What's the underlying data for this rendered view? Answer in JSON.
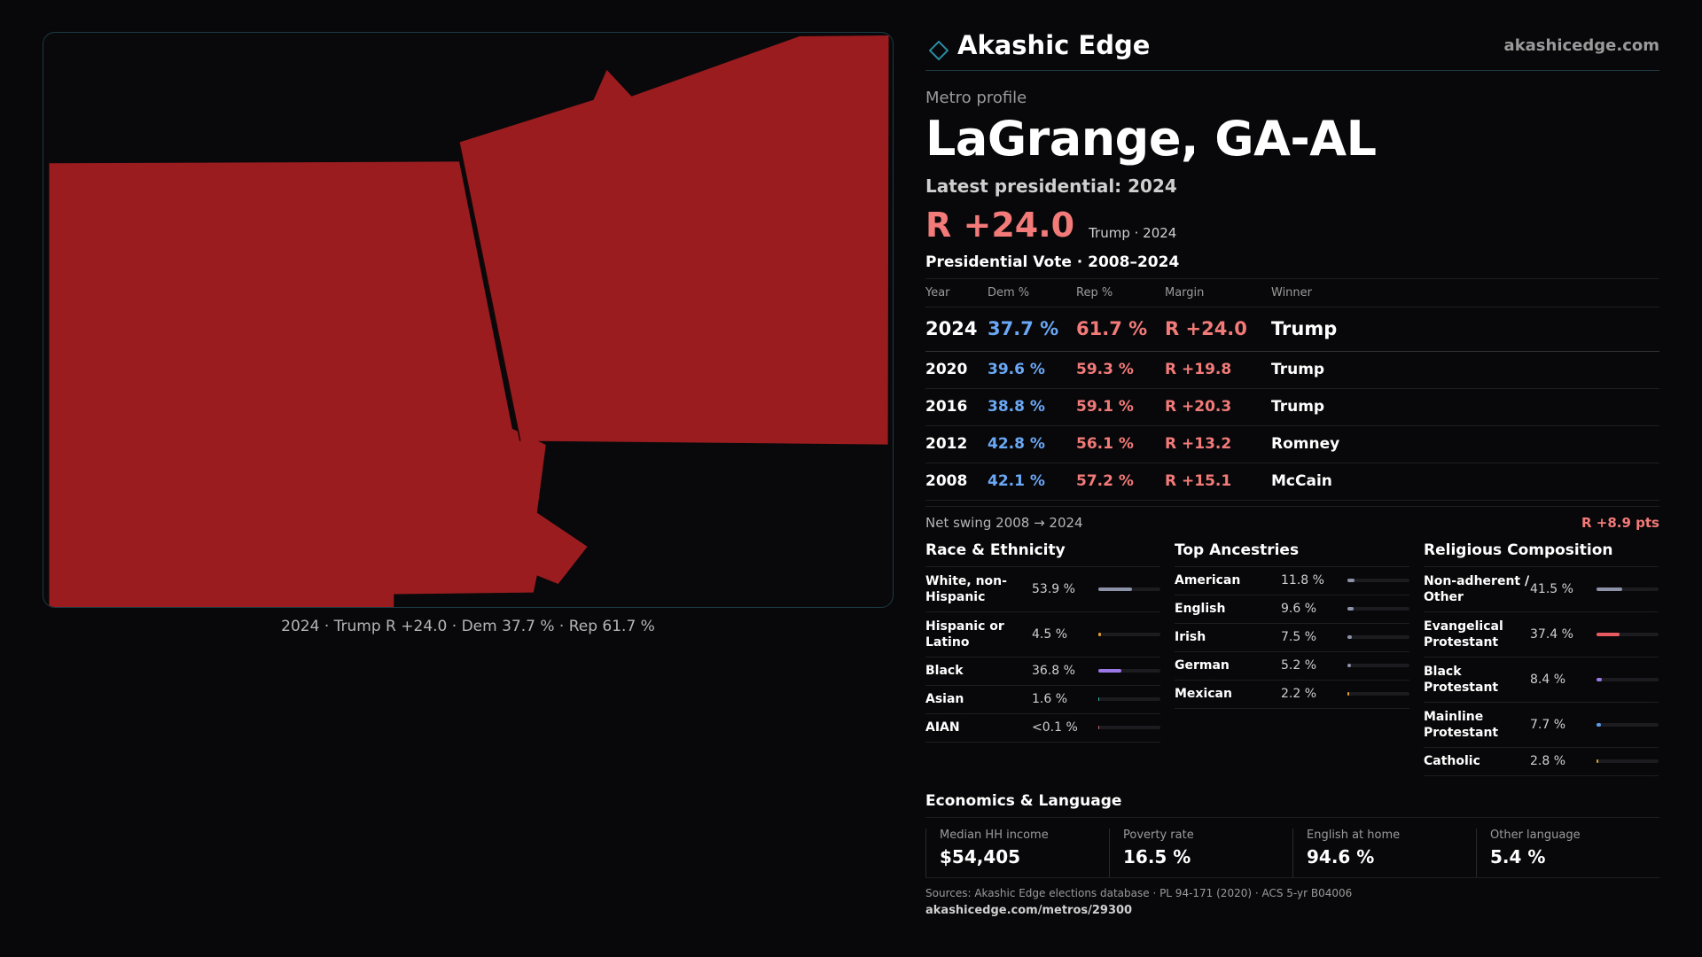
{
  "map": {
    "fill_color": "#9b1c1f",
    "caption": "2024 · Trump R +24.0 · Dem 37.7 % · Rep 61.7 %"
  },
  "brand": {
    "name": "Akashic Edge",
    "url": "akashicedge.com",
    "icon": "diamond-outline-icon",
    "accent": "#2a8ba0"
  },
  "profile": {
    "eyebrow": "Metro profile",
    "title": "LaGrange, GA-AL",
    "latest_label": "Latest presidential: 2024",
    "headline_margin": "R +24.0",
    "headline_sub": "Trump · 2024"
  },
  "votes": {
    "title": "Presidential Vote · 2008–2024",
    "headers": {
      "year": "Year",
      "dem": "Dem %",
      "rep": "Rep %",
      "margin": "Margin",
      "winner": "Winner"
    },
    "rows": [
      {
        "year": "2024",
        "dem": "37.7 %",
        "rep": "61.7 %",
        "margin": "R +24.0",
        "winner": "Trump"
      },
      {
        "year": "2020",
        "dem": "39.6 %",
        "rep": "59.3 %",
        "margin": "R +19.8",
        "winner": "Trump"
      },
      {
        "year": "2016",
        "dem": "38.8 %",
        "rep": "59.1 %",
        "margin": "R +20.3",
        "winner": "Trump"
      },
      {
        "year": "2012",
        "dem": "42.8 %",
        "rep": "56.1 %",
        "margin": "R +13.2",
        "winner": "Romney"
      },
      {
        "year": "2008",
        "dem": "42.1 %",
        "rep": "57.2 %",
        "margin": "R +15.1",
        "winner": "McCain"
      }
    ],
    "swing_label": "Net swing 2008 → 2024",
    "swing_value": "R +8.9 pts"
  },
  "race": {
    "title": "Race & Ethnicity",
    "items": [
      {
        "label": "White, non-Hispanic",
        "value": "53.9 %",
        "fraction": 0.539,
        "color": "#8c93a8"
      },
      {
        "label": "Hispanic or Latino",
        "value": "4.5 %",
        "fraction": 0.045,
        "color": "#e0a030"
      },
      {
        "label": "Black",
        "value": "36.8 %",
        "fraction": 0.368,
        "color": "#9a78e6"
      },
      {
        "label": "Asian",
        "value": "1.6 %",
        "fraction": 0.016,
        "color": "#36b0a0"
      },
      {
        "label": "AIAN",
        "value": "<0.1 %",
        "fraction": 0.0,
        "color": "#c06060"
      }
    ]
  },
  "ancestry": {
    "title": "Top Ancestries",
    "items": [
      {
        "label": "American",
        "value": "11.8 %",
        "fraction": 0.118,
        "color": "#8c93a8"
      },
      {
        "label": "English",
        "value": "9.6 %",
        "fraction": 0.096,
        "color": "#8c93a8"
      },
      {
        "label": "Irish",
        "value": "7.5 %",
        "fraction": 0.075,
        "color": "#8c93a8"
      },
      {
        "label": "German",
        "value": "5.2 %",
        "fraction": 0.052,
        "color": "#8c93a8"
      },
      {
        "label": "Mexican",
        "value": "2.2 %",
        "fraction": 0.022,
        "color": "#e0a030"
      }
    ]
  },
  "religion": {
    "title": "Religious Composition",
    "items": [
      {
        "label": "Non-adherent / Other",
        "value": "41.5 %",
        "fraction": 0.415,
        "color": "#8c93a8"
      },
      {
        "label": "Evangelical Protestant",
        "value": "37.4 %",
        "fraction": 0.374,
        "color": "#e85a62"
      },
      {
        "label": "Black Protestant",
        "value": "8.4 %",
        "fraction": 0.084,
        "color": "#9a78e6"
      },
      {
        "label": "Mainline Protestant",
        "value": "7.7 %",
        "fraction": 0.077,
        "color": "#5a9ae6"
      },
      {
        "label": "Catholic",
        "value": "2.8 %",
        "fraction": 0.028,
        "color": "#e0a030"
      }
    ]
  },
  "economics": {
    "title": "Economics & Language",
    "cells": [
      {
        "label": "Median HH income",
        "value": "$54,405"
      },
      {
        "label": "Poverty rate",
        "value": "16.5 %"
      },
      {
        "label": "English at home",
        "value": "94.6 %"
      },
      {
        "label": "Other language",
        "value": "5.4 %"
      }
    ]
  },
  "footer": {
    "sources": "Sources: Akashic Edge elections database · PL 94-171 (2020) · ACS 5-yr B04006",
    "permalink": "akashicedge.com/metros/29300"
  }
}
